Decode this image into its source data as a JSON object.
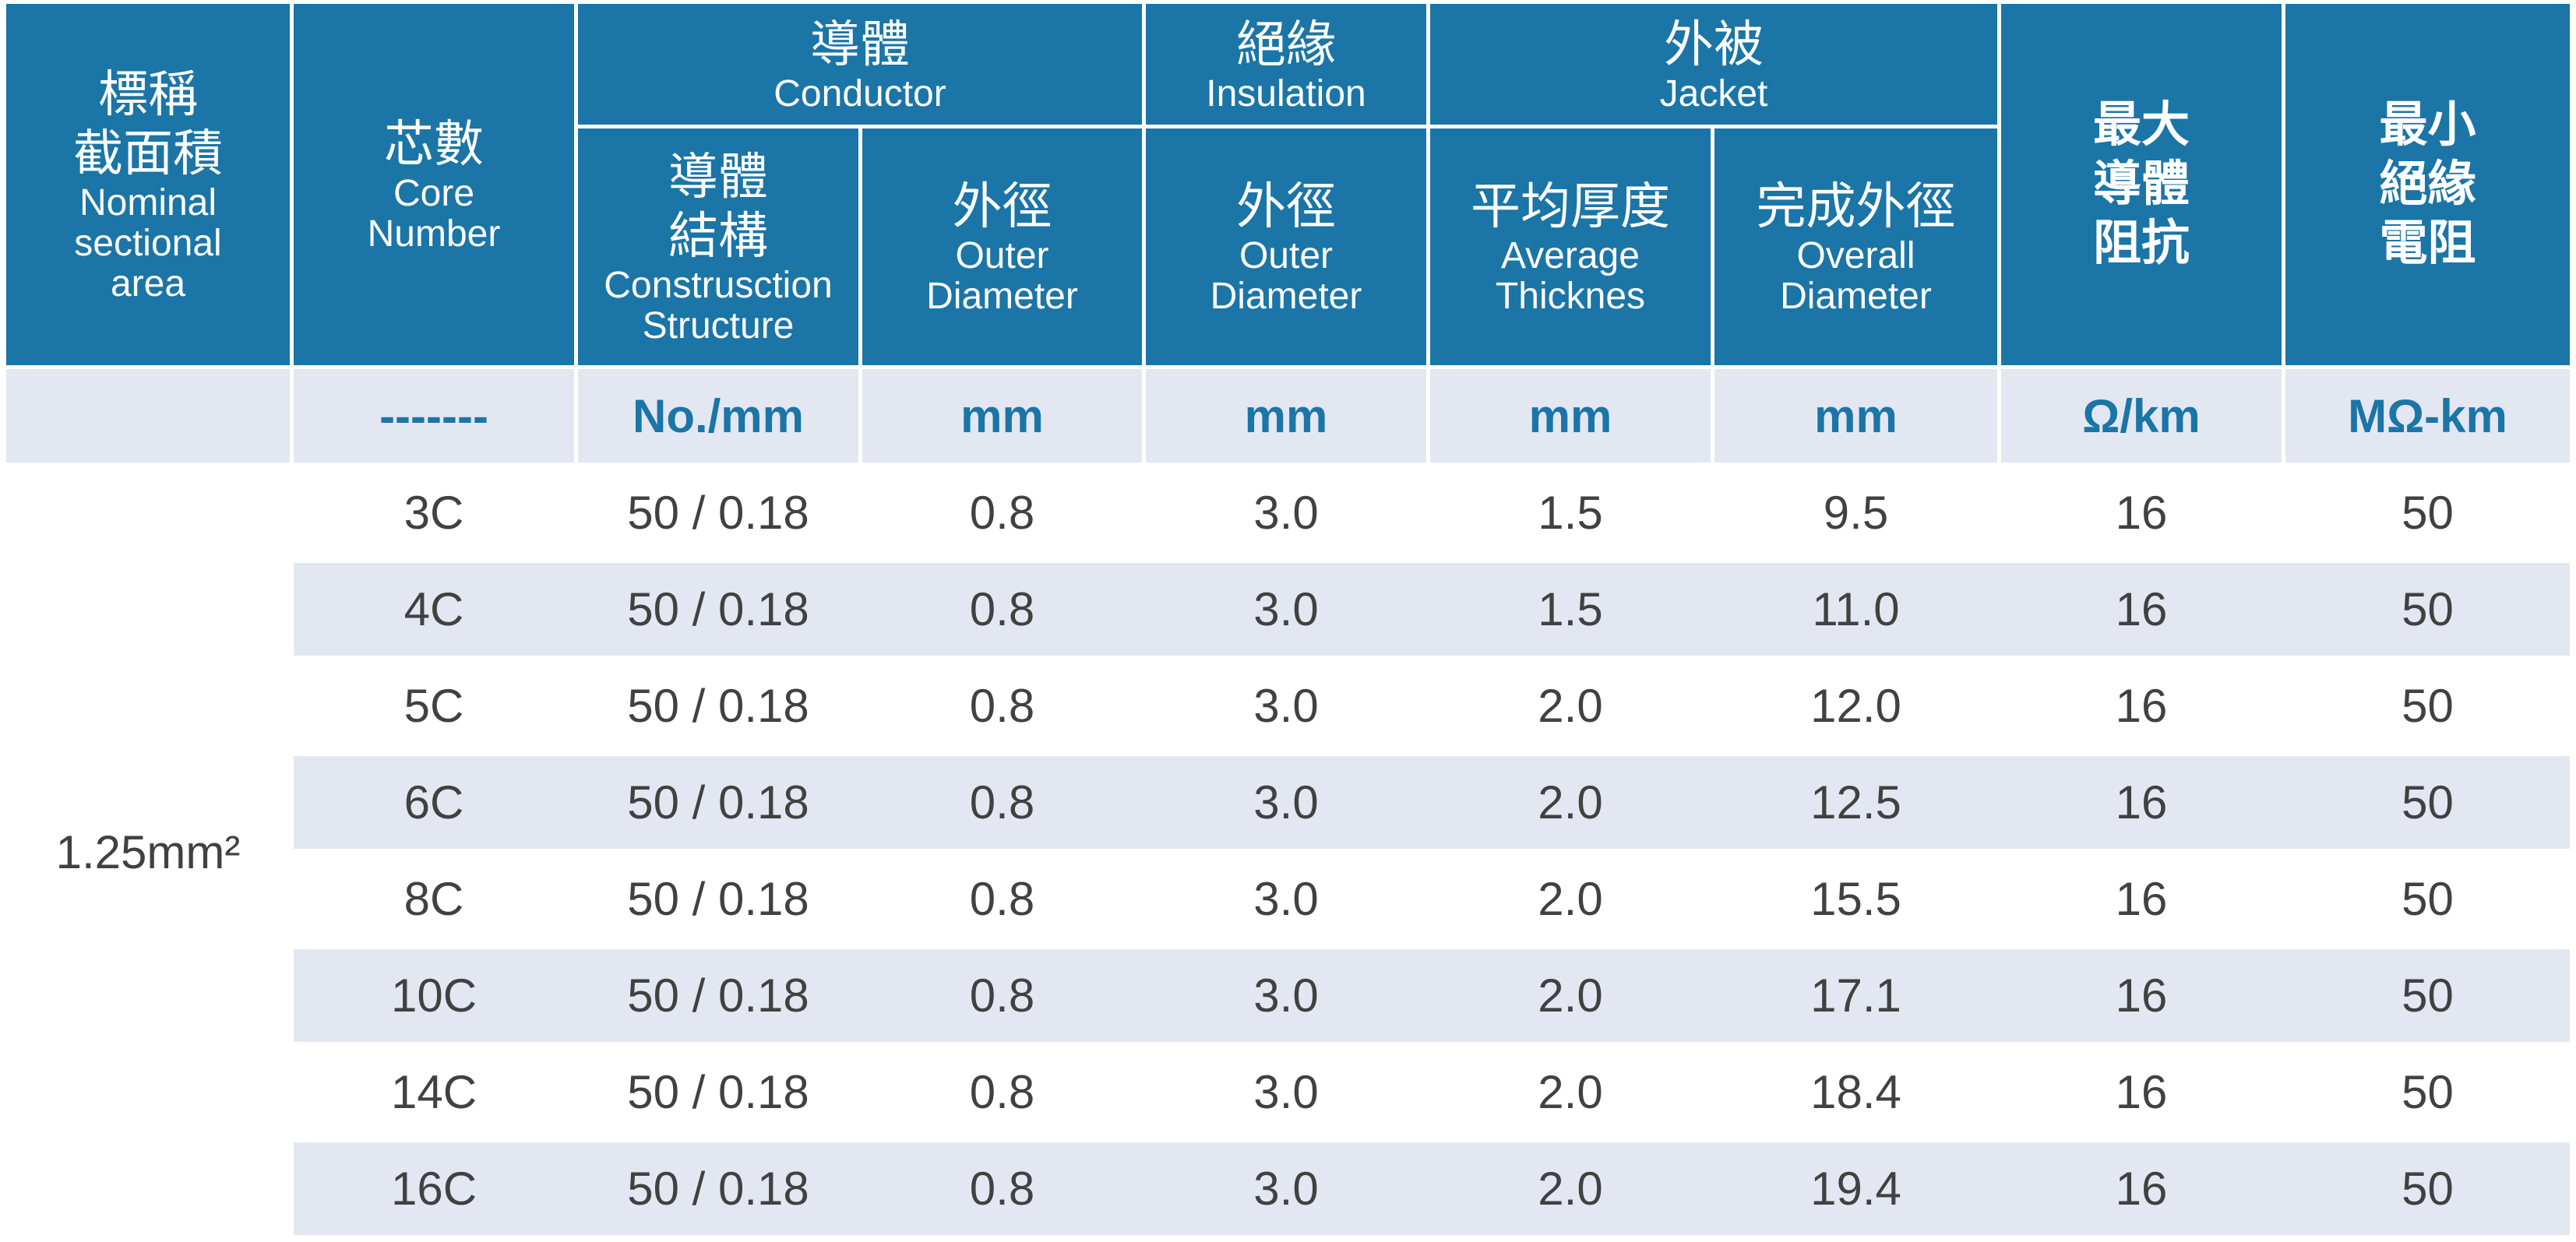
{
  "table": {
    "header": {
      "nominal": {
        "zh1": "標稱",
        "zh2": "截面積",
        "en1": "Nominal",
        "en2": "sectional",
        "en3": "area"
      },
      "core": {
        "zh": "芯數",
        "en1": "Core",
        "en2": "Number"
      },
      "conductor": {
        "zh": "導體",
        "en": "Conductor"
      },
      "insulation": {
        "zh": "絕緣",
        "en": "Insulation"
      },
      "jacket": {
        "zh": "外被",
        "en": "Jacket"
      },
      "construction": {
        "zh1": "導體",
        "zh2": "結構",
        "en1": "Construsction",
        "en2": "Structure"
      },
      "cond_od": {
        "zh": "外徑",
        "en1": "Outer",
        "en2": "Diameter"
      },
      "ins_od": {
        "zh": "外徑",
        "en1": "Outer",
        "en2": "Diameter"
      },
      "avg_thick": {
        "zh": "平均厚度",
        "en1": "Average",
        "en2": "Thicknes"
      },
      "overall_od": {
        "zh": "完成外徑",
        "en1": "Overall",
        "en2": "Diameter"
      },
      "max_resist": {
        "zh1": "最大",
        "zh2": "導體",
        "zh3": "阻抗"
      },
      "min_ins": {
        "zh1": "最小",
        "zh2": "絕緣",
        "zh3": "電阻"
      }
    },
    "units": [
      "",
      "-------",
      "No./mm",
      "mm",
      "mm",
      "mm",
      "mm",
      "Ω/km",
      "MΩ-km"
    ],
    "nominal_value": "1.25mm²",
    "rows": [
      [
        "3C",
        "50 / 0.18",
        "0.8",
        "3.0",
        "1.5",
        "9.5",
        "16",
        "50"
      ],
      [
        "4C",
        "50 / 0.18",
        "0.8",
        "3.0",
        "1.5",
        "11.0",
        "16",
        "50"
      ],
      [
        "5C",
        "50 / 0.18",
        "0.8",
        "3.0",
        "2.0",
        "12.0",
        "16",
        "50"
      ],
      [
        "6C",
        "50 / 0.18",
        "0.8",
        "3.0",
        "2.0",
        "12.5",
        "16",
        "50"
      ],
      [
        "8C",
        "50 / 0.18",
        "0.8",
        "3.0",
        "2.0",
        "15.5",
        "16",
        "50"
      ],
      [
        "10C",
        "50 / 0.18",
        "0.8",
        "3.0",
        "2.0",
        "17.1",
        "16",
        "50"
      ],
      [
        "14C",
        "50 / 0.18",
        "0.8",
        "3.0",
        "2.0",
        "18.4",
        "16",
        "50"
      ],
      [
        "16C",
        "50 / 0.18",
        "0.8",
        "3.0",
        "2.0",
        "19.4",
        "16",
        "50"
      ]
    ]
  },
  "colors": {
    "header_bg": "#1b75a7",
    "unit_text": "#1b75a7",
    "stripe": "#e3e7f1"
  }
}
